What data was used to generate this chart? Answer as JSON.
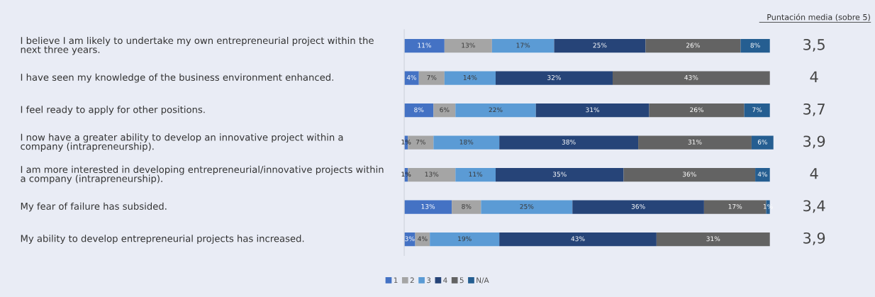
{
  "chart_data": {
    "type": "bar",
    "orientation": "horizontal",
    "stacked": true,
    "categories": [
      "I believe I am likely to undertake my own entrepreneurial project within the\nnext three years.",
      "I have seen my knowledge of the business environment enhanced.",
      "I feel ready to apply for other positions.",
      "I now have a greater ability to develop an innovative project within a\ncompany (intrapreneurship).",
      "I am more interested in developing entrepreneurial/innovative projects within\na company (intrapreneurship).",
      "My fear of failure has subsided.",
      "My ability to develop entrepreneurial projects has increased."
    ],
    "series": [
      {
        "name": "1",
        "color": "#4472c4",
        "values": [
          11,
          4,
          8,
          1,
          1,
          13,
          3
        ],
        "value_labels": [
          "11%",
          "4%",
          "8%",
          "1%",
          "1%",
          "13%",
          "3%"
        ]
      },
      {
        "name": "2",
        "color": "#a5a5a5",
        "values": [
          13,
          7,
          6,
          7,
          13,
          8,
          4
        ],
        "value_labels": [
          "13%",
          "7%",
          "6%",
          "7%",
          "13%",
          "8%",
          "4%"
        ]
      },
      {
        "name": "3",
        "color": "#5b9bd5",
        "values": [
          17,
          14,
          22,
          18,
          11,
          25,
          19
        ],
        "value_labels": [
          "17%",
          "14%",
          "22%",
          "18%",
          "11%",
          "25%",
          "19%"
        ]
      },
      {
        "name": "4",
        "color": "#264478",
        "values": [
          25,
          32,
          31,
          38,
          35,
          36,
          43
        ],
        "value_labels": [
          "25%",
          "32%",
          "31%",
          "38%",
          "35%",
          "36%",
          "43%"
        ]
      },
      {
        "name": "5",
        "color": "#636363",
        "values": [
          26,
          43,
          26,
          31,
          36,
          17,
          31
        ],
        "value_labels": [
          "26%",
          "43%",
          "26%",
          "31%",
          "36%",
          "17%",
          "31%"
        ]
      },
      {
        "name": "N/A",
        "color": "#255e91",
        "values": [
          8,
          null,
          7,
          6,
          4,
          1,
          null
        ],
        "value_labels": [
          "8%",
          null,
          "7%",
          "6%",
          "4%",
          "1%",
          null
        ]
      }
    ],
    "xlim": [
      0,
      101
    ],
    "tick_labels": "y",
    "legend": "bottom",
    "grid": false,
    "annotations": [
      "Puntación media (sobre 5)",
      "3,5",
      "4",
      "3,7",
      "3,9",
      "4",
      "3,4",
      "3,9"
    ]
  }
}
